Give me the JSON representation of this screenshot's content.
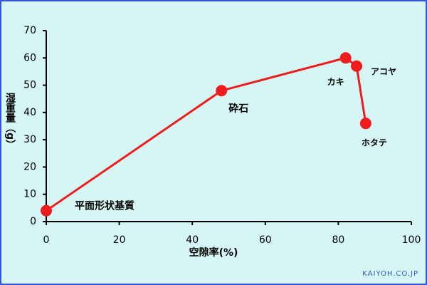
{
  "chart_data": {
    "type": "line",
    "xlabel": "空隙率(%)",
    "ylabel": "湿重量（g）",
    "x": [
      0,
      48,
      82,
      85,
      87.5
    ],
    "series": [
      {
        "color": "#ee1c1c",
        "values": [
          4,
          48,
          60,
          57,
          36
        ]
      }
    ],
    "point_labels": [
      "平面形状基質",
      "砕石",
      "カキ",
      "アコヤ",
      "ホタテ"
    ],
    "xlim": [
      0,
      100
    ],
    "xticks": [
      0,
      20,
      40,
      60,
      80,
      100
    ],
    "ylim": [
      0,
      70
    ],
    "yticks": [
      0,
      10,
      20,
      30,
      40,
      50,
      60,
      70
    ],
    "grid": false,
    "watermark": "KAIYOH.CO.JP"
  }
}
